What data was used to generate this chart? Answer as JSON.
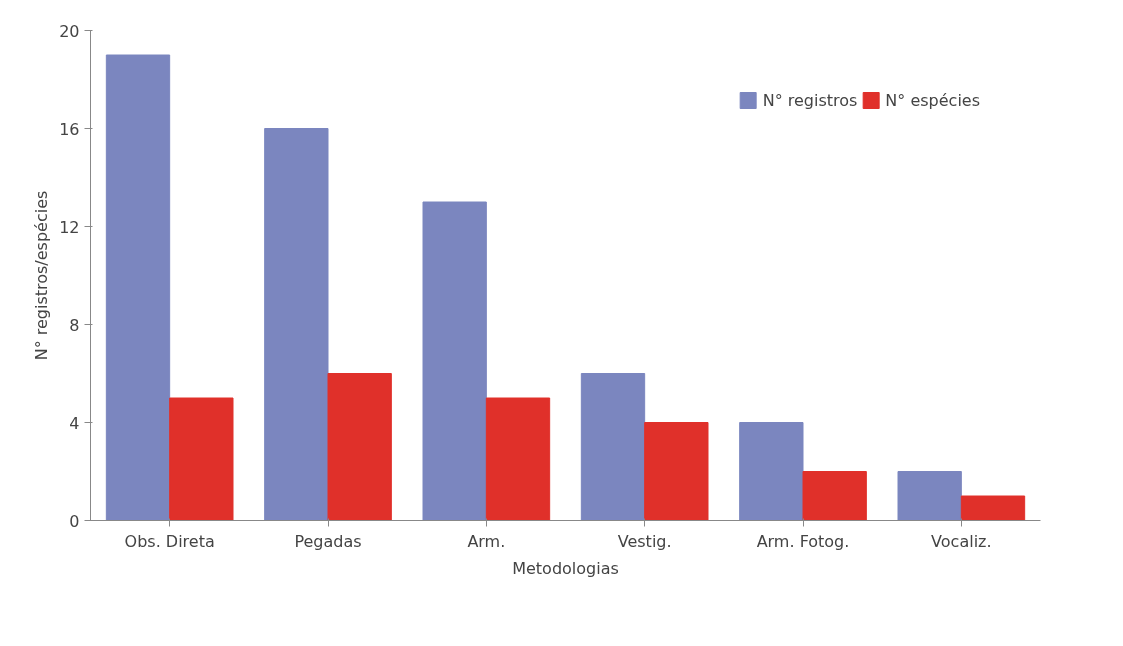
{
  "chart_data": {
    "type": "bar",
    "xlabel": "Metodologias",
    "ylabel": "N° registros/espécies",
    "categories": [
      "Obs. Direta",
      "Pegadas",
      "Arm.",
      "Vestig.",
      "Arm. Fotog.",
      "Vocaliz."
    ],
    "series": [
      {
        "name": "N° registros",
        "color": "#7b86bf",
        "values": [
          19,
          16,
          13,
          6,
          4,
          2
        ]
      },
      {
        "name": "N° espécies",
        "color": "#e0302a",
        "values": [
          5,
          6,
          5,
          4,
          2,
          1
        ]
      }
    ],
    "ylim": [
      0,
      20
    ],
    "yticks": [
      0,
      4,
      8,
      12,
      16,
      20
    ],
    "grid": false,
    "legend": "top right"
  }
}
